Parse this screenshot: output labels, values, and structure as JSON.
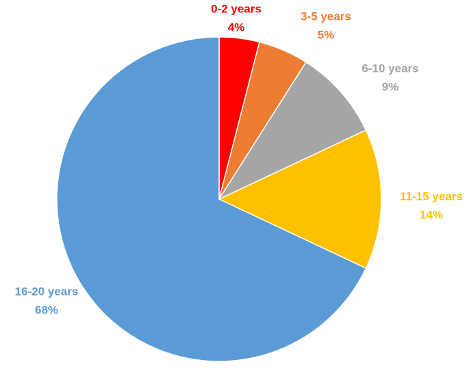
{
  "chart_data": {
    "type": "pie",
    "categories": [
      "0-2 years",
      "3-5 years",
      "6-10 years",
      "11-15 years",
      "16-20 years"
    ],
    "values": [
      4,
      5,
      9,
      14,
      68
    ],
    "value_labels": [
      "4%",
      "5%",
      "9%",
      "14%",
      "68%"
    ],
    "colors": [
      "#ff0000",
      "#ed7d31",
      "#a5a5a5",
      "#ffc000",
      "#5b9bd5"
    ]
  }
}
